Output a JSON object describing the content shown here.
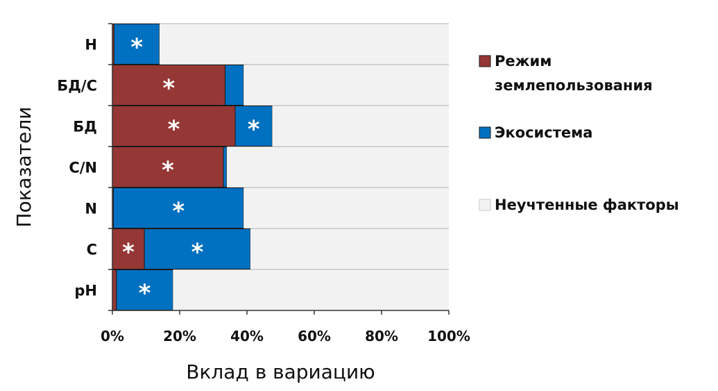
{
  "chart_data": {
    "type": "bar",
    "orientation": "horizontal",
    "stacked": true,
    "categories": [
      "H",
      "БД/С",
      "БД",
      "С/N",
      "N",
      "С",
      "pH"
    ],
    "series": [
      {
        "name": "Режим землепользования",
        "color": "#953735",
        "values": [
          0.5,
          33.5,
          36.5,
          33,
          0.3,
          9.5,
          1.2
        ]
      },
      {
        "name": "Экосистема",
        "color": "#0070c0",
        "values": [
          13.5,
          5.5,
          11,
          1,
          38.7,
          31.5,
          16.8
        ]
      },
      {
        "name": "Неучтенные факторы",
        "color": "#f2f2f2",
        "values": [
          86,
          61,
          52.5,
          66,
          61,
          59,
          82
        ]
      }
    ],
    "significance": [
      [
        "",
        "*",
        "*",
        "*",
        "",
        "*",
        ""
      ],
      [
        "*",
        "",
        "*",
        "",
        "*",
        "*",
        "*"
      ]
    ],
    "xlabel": "Вклад в вариацию",
    "ylabel": "Показатели",
    "xlim": [
      0,
      100
    ],
    "xticks": [
      "0%",
      "20%",
      "40%",
      "60%",
      "80%",
      "100%"
    ],
    "legend_lines": [
      [
        "Режим",
        "землепользования"
      ],
      [
        "Экосистема"
      ],
      [
        "Неучтенные факторы"
      ]
    ],
    "legend_position": "right",
    "grid": true
  }
}
